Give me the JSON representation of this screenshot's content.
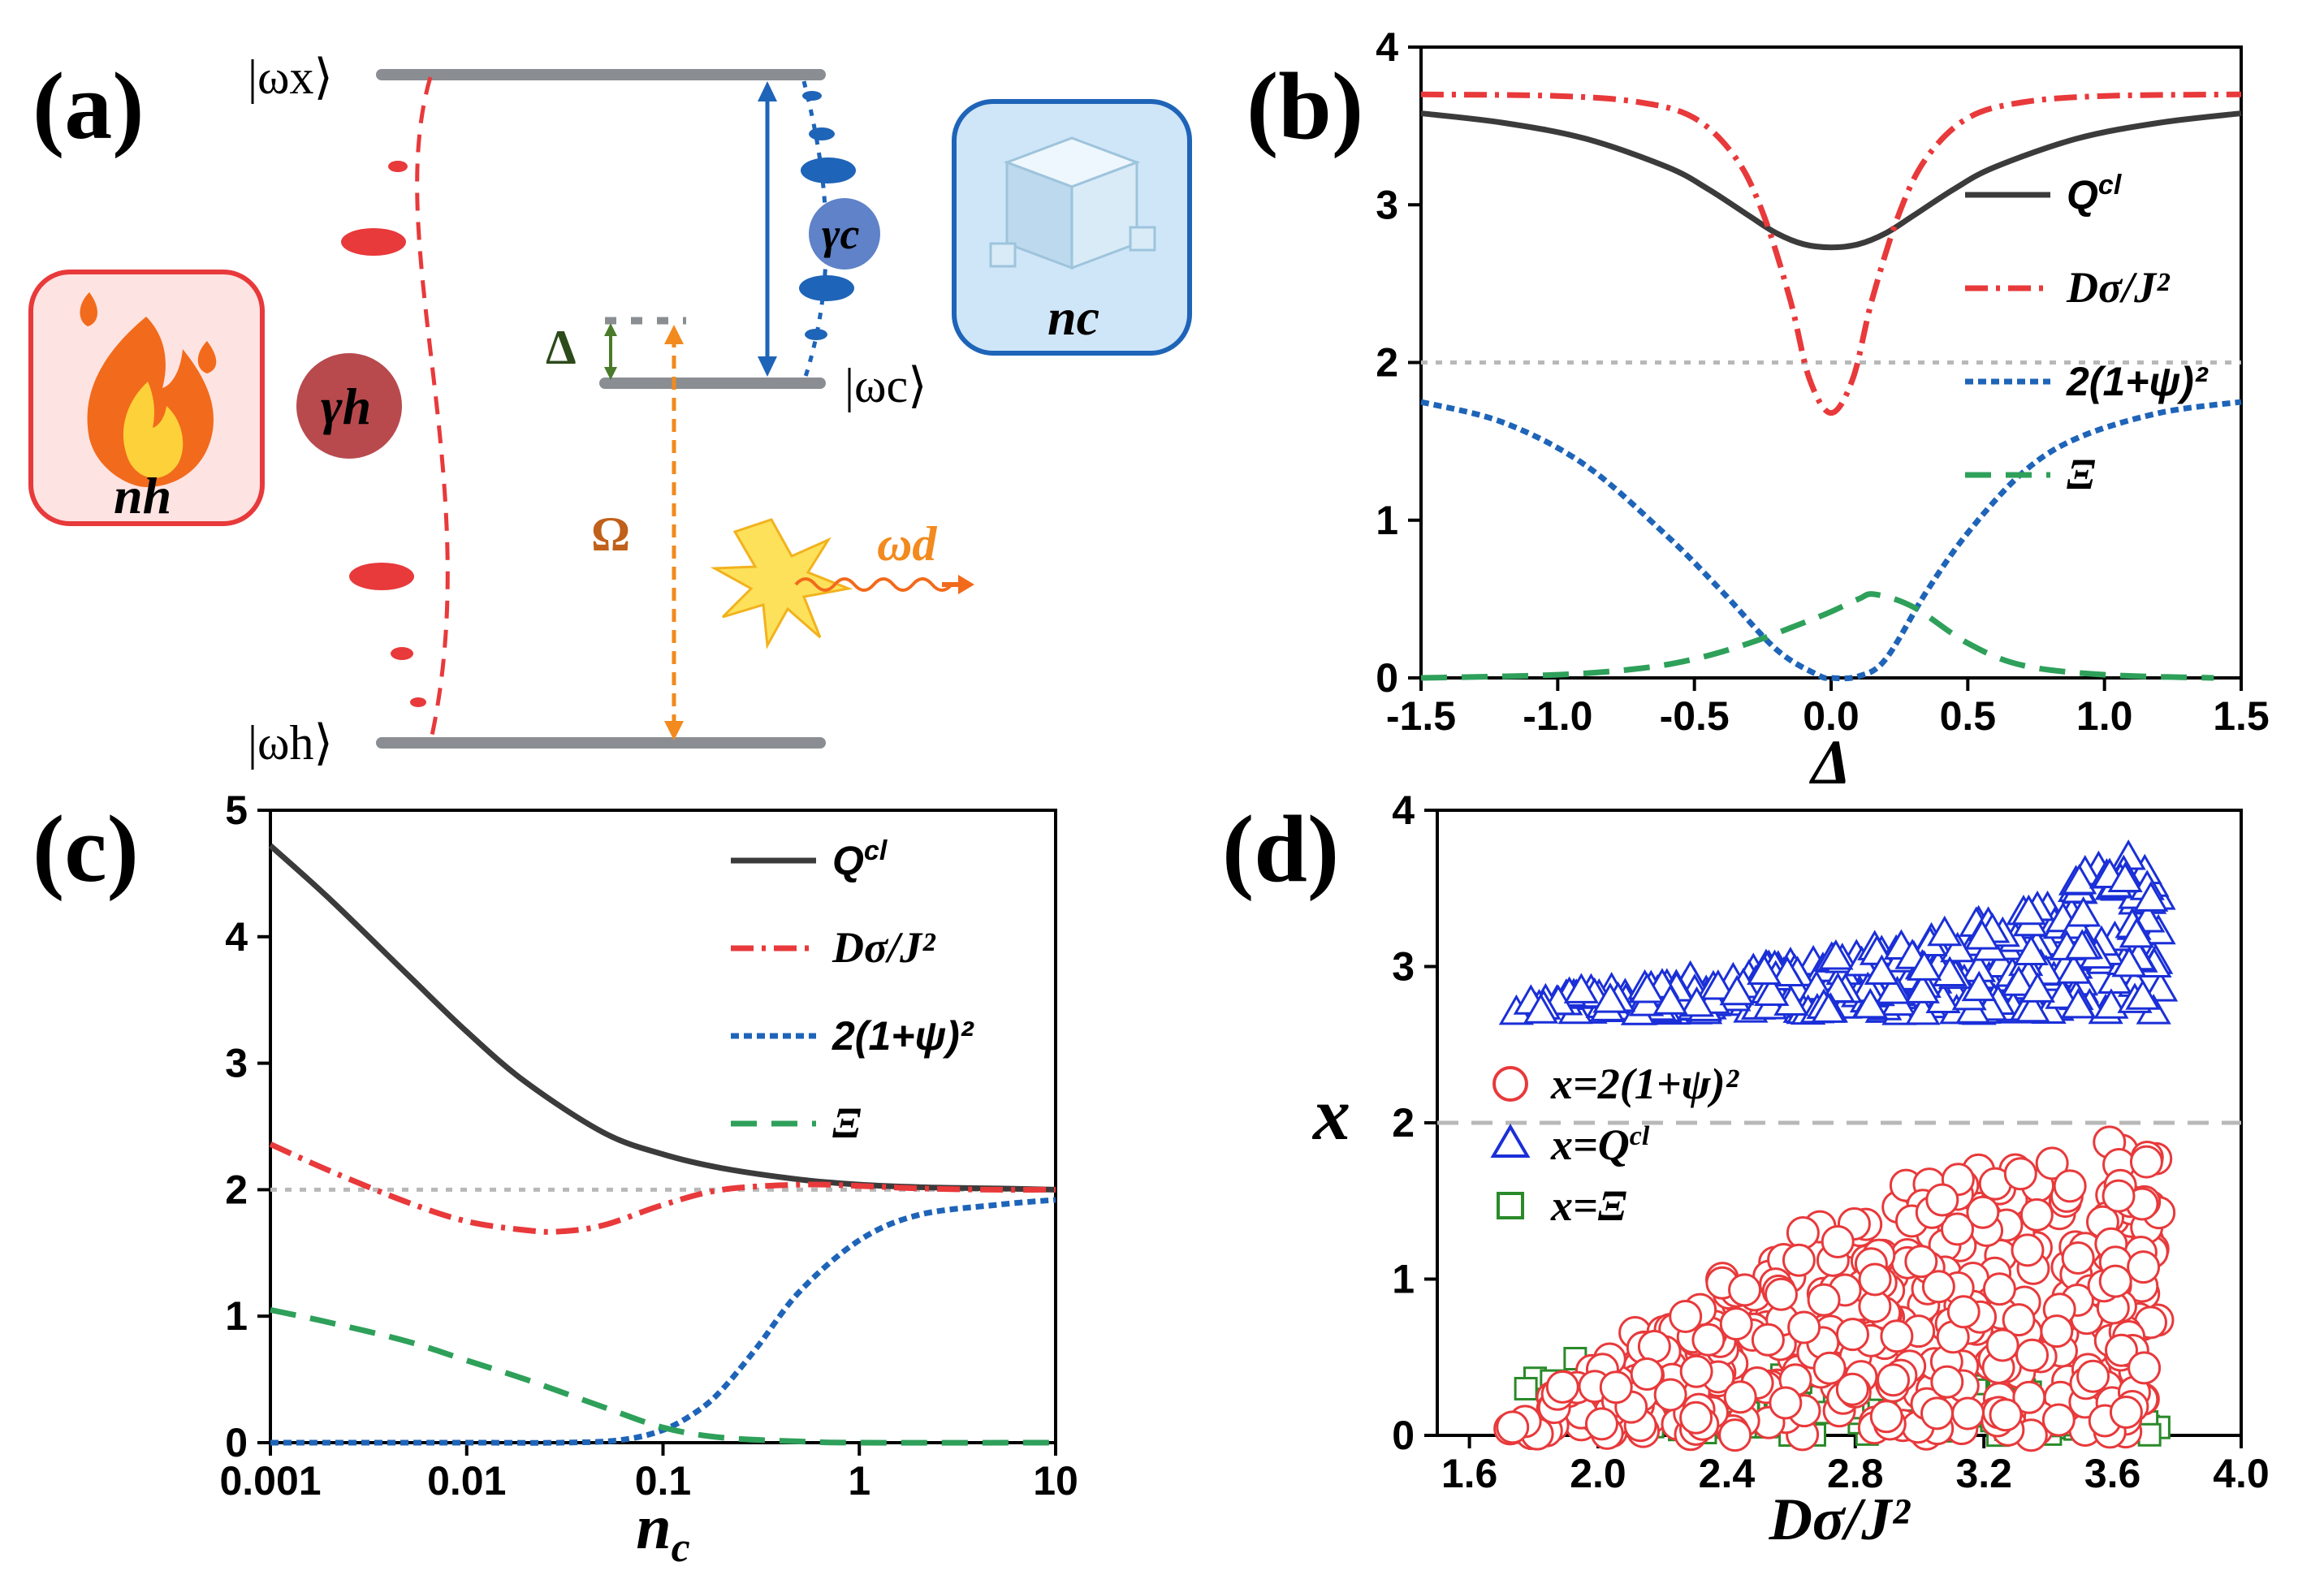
{
  "panels": {
    "a": "(a)",
    "b": "(b)",
    "c": "(c)",
    "d": "(d)"
  },
  "diagram": {
    "levels": {
      "top": "|ωx⟩",
      "middle": "|ωc⟩",
      "bottom": "|ωh⟩"
    },
    "hot_bath": "nh",
    "cold_bath": "nc",
    "hot_rate": "γh",
    "cold_rate": "γc",
    "detuning": "Δ",
    "drive_amplitude": "Ω",
    "drive_frequency": "ωd",
    "colors": {
      "level": "#8a8e93",
      "hot": "#e8393b",
      "cold": "#1e64b8",
      "drive": "#f28a1e",
      "detune": "#4a7a2a",
      "hot_box": "#fde3e1",
      "cold_box": "#cfe6f8"
    }
  },
  "chart_data": [
    {
      "panel": "b",
      "type": "line",
      "xlabel": "Δ",
      "ylabel": "",
      "xlim": [
        -1.5,
        1.5
      ],
      "ylim": [
        0,
        4
      ],
      "xticks": [
        "-1.5",
        "-1.0",
        "-0.5",
        "0.0",
        "0.5",
        "1.0",
        "1.5"
      ],
      "yticks": [
        "0",
        "1",
        "2",
        "3",
        "4"
      ],
      "reference_line": 2,
      "legend_position": "right",
      "series": [
        {
          "name": "Q^cl",
          "color": "#3b3b3b",
          "style": "solid",
          "x": [
            -1.5,
            -1.2,
            -0.9,
            -0.6,
            -0.45,
            -0.3,
            -0.2,
            -0.1,
            0.0,
            0.1,
            0.2,
            0.3,
            0.45,
            0.6,
            0.9,
            1.2,
            1.5
          ],
          "y": [
            3.58,
            3.52,
            3.42,
            3.24,
            3.1,
            2.93,
            2.82,
            2.75,
            2.73,
            2.75,
            2.82,
            2.93,
            3.1,
            3.24,
            3.42,
            3.52,
            3.58
          ]
        },
        {
          "name": "Dσ/J²",
          "color": "#e8393b",
          "style": "dashdot",
          "x": [
            -1.5,
            -1.0,
            -0.7,
            -0.5,
            -0.35,
            -0.25,
            -0.15,
            -0.08,
            0.0,
            0.08,
            0.15,
            0.25,
            0.35,
            0.5,
            0.7,
            1.0,
            1.5
          ],
          "y": [
            3.7,
            3.69,
            3.65,
            3.55,
            3.3,
            2.95,
            2.4,
            1.9,
            1.68,
            1.9,
            2.4,
            2.95,
            3.3,
            3.55,
            3.65,
            3.69,
            3.7
          ]
        },
        {
          "name": "2(1+ψ)²",
          "color": "#1e64b8",
          "style": "dotted",
          "x": [
            -1.5,
            -1.2,
            -0.9,
            -0.6,
            -0.4,
            -0.2,
            -0.05,
            0.0,
            0.1,
            0.2,
            0.35,
            0.5,
            0.7,
            0.9,
            1.2,
            1.5
          ],
          "y": [
            1.75,
            1.62,
            1.35,
            0.9,
            0.55,
            0.18,
            0.02,
            0.0,
            0.01,
            0.12,
            0.55,
            0.92,
            1.3,
            1.52,
            1.68,
            1.75
          ]
        },
        {
          "name": "Ξ",
          "color": "#2ea05a",
          "style": "dashed",
          "x": [
            -1.5,
            -1.0,
            -0.7,
            -0.5,
            -0.3,
            -0.1,
            0.0,
            0.1,
            0.16,
            0.3,
            0.5,
            0.7,
            1.0,
            1.4
          ],
          "y": [
            0.0,
            0.02,
            0.06,
            0.12,
            0.22,
            0.35,
            0.42,
            0.5,
            0.53,
            0.45,
            0.22,
            0.08,
            0.02,
            0.0
          ]
        }
      ]
    },
    {
      "panel": "c",
      "type": "line",
      "xlabel": "nc",
      "ylabel": "",
      "xscale": "log",
      "xlim": [
        0.001,
        10
      ],
      "ylim": [
        0,
        5
      ],
      "xticks": [
        "0.001",
        "0.01",
        "0.1",
        "1",
        "10"
      ],
      "yticks": [
        "0",
        "1",
        "2",
        "3",
        "4",
        "5"
      ],
      "reference_line": 2,
      "legend_position": "top-right",
      "series": [
        {
          "name": "Q^cl",
          "color": "#3b3b3b",
          "style": "solid",
          "x": [
            0.001,
            0.002,
            0.005,
            0.01,
            0.02,
            0.05,
            0.1,
            0.2,
            0.5,
            1,
            2,
            5,
            10
          ],
          "y": [
            4.72,
            4.3,
            3.7,
            3.25,
            2.85,
            2.45,
            2.28,
            2.17,
            2.08,
            2.04,
            2.02,
            2.01,
            2.0
          ]
        },
        {
          "name": "Dσ/J²",
          "color": "#e8393b",
          "style": "dashdot",
          "x": [
            0.001,
            0.002,
            0.005,
            0.01,
            0.02,
            0.03,
            0.05,
            0.1,
            0.2,
            0.5,
            1,
            2,
            5,
            10
          ],
          "y": [
            2.36,
            2.15,
            1.9,
            1.75,
            1.68,
            1.67,
            1.72,
            1.88,
            2.0,
            2.04,
            2.03,
            2.01,
            2.0,
            2.0
          ]
        },
        {
          "name": "2(1+ψ)²",
          "color": "#1e64b8",
          "style": "dotted",
          "x": [
            0.001,
            0.01,
            0.03,
            0.06,
            0.1,
            0.15,
            0.2,
            0.3,
            0.5,
            1,
            2,
            5,
            10
          ],
          "y": [
            0.0,
            0.0,
            0.0,
            0.02,
            0.1,
            0.25,
            0.42,
            0.75,
            1.2,
            1.6,
            1.8,
            1.88,
            1.92
          ]
        },
        {
          "name": "Ξ",
          "color": "#2ea05a",
          "style": "dashed",
          "x": [
            0.001,
            0.002,
            0.005,
            0.01,
            0.02,
            0.05,
            0.1,
            0.2,
            0.5,
            1,
            10
          ],
          "y": [
            1.05,
            0.95,
            0.8,
            0.65,
            0.5,
            0.28,
            0.12,
            0.04,
            0.01,
            0.0,
            0.0
          ]
        }
      ]
    },
    {
      "panel": "d",
      "type": "scatter",
      "xlabel": "Dσ/J²",
      "ylabel": "x",
      "xlim": [
        1.5,
        4.0
      ],
      "ylim": [
        0,
        4
      ],
      "xticks": [
        "1.6",
        "2.0",
        "2.4",
        "2.8",
        "3.2",
        "3.6",
        "4.0"
      ],
      "yticks": [
        "0",
        "1",
        "2",
        "3",
        "4"
      ],
      "reference_line": 2,
      "legend_position": "center-left",
      "series": [
        {
          "name": "x=2(1+ψ)²",
          "marker": "circle",
          "color": "#e8393b",
          "envelope": {
            "x": [
              1.7,
              1.9,
              2.1,
              2.4,
              2.7,
              3.0,
              3.3,
              3.5,
              3.65,
              3.75
            ],
            "y_min": [
              0.0,
              0.0,
              0.0,
              0.0,
              0.0,
              0.0,
              0.0,
              0.0,
              0.0,
              0.0
            ],
            "y_max": [
              0.05,
              0.35,
              0.65,
              1.05,
              1.4,
              1.65,
              1.78,
              1.85,
              1.9,
              1.82
            ]
          }
        },
        {
          "name": "x=Q^cl",
          "marker": "triangle",
          "color": "#1a2fd8",
          "envelope": {
            "x": [
              1.7,
              2.0,
              2.4,
              2.8,
              3.2,
              3.45,
              3.55,
              3.65,
              3.75
            ],
            "y_min": [
              2.7,
              2.7,
              2.7,
              2.7,
              2.7,
              2.7,
              2.7,
              2.7,
              2.7
            ],
            "y_max": [
              2.8,
              2.85,
              2.95,
              3.1,
              3.3,
              3.45,
              3.7,
              3.75,
              3.6
            ]
          }
        },
        {
          "name": "x=Ξ",
          "marker": "square",
          "color": "#2a8a2a",
          "envelope": {
            "x": [
              1.7,
              1.9,
              2.2,
              2.6,
              3.0,
              3.4,
              3.75
            ],
            "y_min": [
              0.35,
              0.0,
              0.0,
              0.0,
              0.0,
              0.0,
              0.0
            ],
            "y_max": [
              0.45,
              0.5,
              0.45,
              0.4,
              0.35,
              0.28,
              0.1
            ]
          }
        }
      ]
    }
  ]
}
